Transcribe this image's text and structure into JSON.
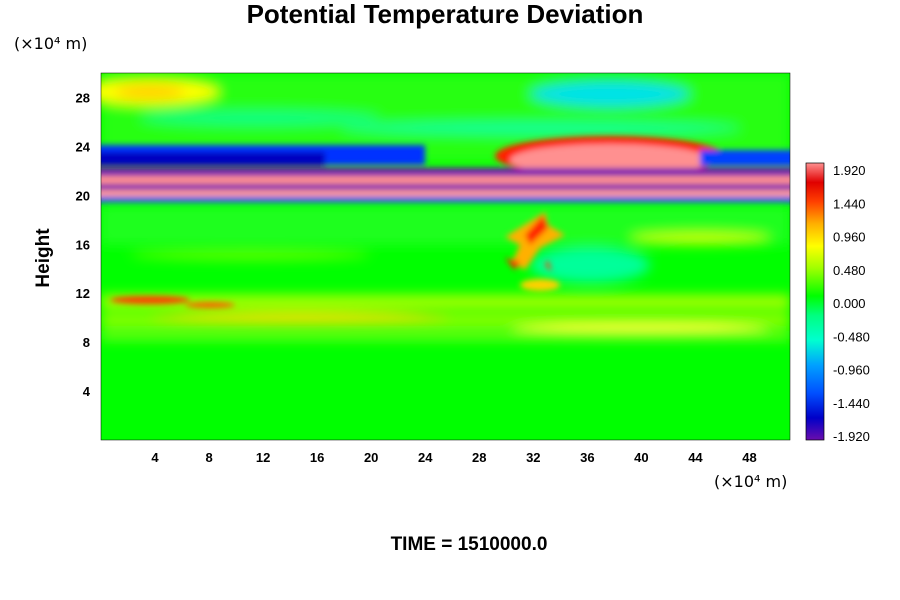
{
  "chart_data": {
    "type": "heatmap",
    "title": "Potential Temperature Deviation",
    "xlabel": "",
    "ylabel": "Height",
    "x_unit": "(×10⁴ m)",
    "y_unit": "(×10⁴ m)",
    "x_ticks": [
      4,
      8,
      12,
      16,
      20,
      24,
      28,
      32,
      36,
      40,
      44,
      48
    ],
    "y_ticks": [
      4,
      8,
      12,
      16,
      20,
      24,
      28
    ],
    "xlim": [
      0,
      51
    ],
    "ylim": [
      0,
      30
    ],
    "colorbar": {
      "min": -1.92,
      "max": 1.92,
      "labels": [
        "1.920",
        "1.440",
        "0.960",
        "0.480",
        "0.000",
        "-0.480",
        "-0.960",
        "-1.440",
        "-1.920"
      ],
      "colors": [
        "#6a0dad",
        "#0000c8",
        "#0050ff",
        "#00c8ff",
        "#00ffd0",
        "#00ff80",
        "#00ff00",
        "#a0ff00",
        "#ffff00",
        "#ffb000",
        "#ff4000",
        "#e00000",
        "#ff9090"
      ]
    },
    "features": [
      {
        "name": "upper positive dome",
        "x_range": [
          29,
          46
        ],
        "y_range": [
          21.5,
          24.5
        ],
        "value": 1.92
      },
      {
        "name": "upper yellow patch",
        "x_range": [
          1,
          8
        ],
        "y_range": [
          27.8,
          29.2
        ],
        "value": 0.6
      },
      {
        "name": "upper cyan patch",
        "x_range": [
          36,
          46
        ],
        "y_range": [
          28,
          29.4
        ],
        "value": -0.6
      },
      {
        "name": "blue band",
        "x_range": [
          0,
          30
        ],
        "y_range": [
          22,
          23.5
        ],
        "value": -1.4
      },
      {
        "name": "purple band",
        "x_range": [
          0,
          51
        ],
        "y_range": [
          20.2,
          21.8
        ],
        "value": -1.92
      },
      {
        "name": "pink band",
        "x_range": [
          0,
          51
        ],
        "y_range": [
          19.5,
          20.6
        ],
        "value": 1.92
      },
      {
        "name": "convective burst",
        "x_range": [
          28,
          35
        ],
        "y_range": [
          13,
          18.5
        ],
        "value": 1.5
      },
      {
        "name": "lower yellow band",
        "x_range": [
          0,
          51
        ],
        "y_range": [
          9,
          12
        ],
        "value": 0.8
      }
    ]
  },
  "footer": {
    "time_label": "TIME = 1510000.0"
  }
}
